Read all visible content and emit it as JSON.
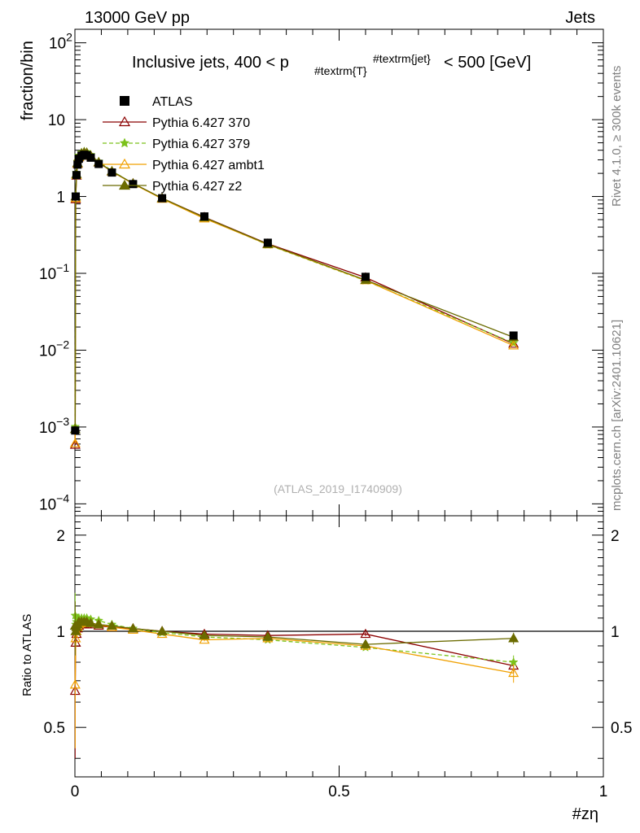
{
  "header": {
    "energy": "13000 GeV pp",
    "process": "Jets",
    "side_info": "Rivet 4.1.0, ≥ 300k events",
    "side_source": "mcplots.cern.ch [arXiv:2401.10621]",
    "analysis_id": "(ATLAS_2019_I1740909)"
  },
  "chart_data": {
    "type": "line",
    "title": "Inclusive jets, 400 < p_{#textrm{T}}^{#textrm{jet}} < 500 [GeV]",
    "title_parts": {
      "prefix": "Inclusive jets, 400 < p",
      "subscript": "#textrm{T}",
      "superscript": "#textrm{jet}",
      "suffix": "< 500 [GeV]"
    },
    "xlabel": "#zη",
    "ylabel": "fraction/bin",
    "ratio_ylabel": "Ratio to ATLAS",
    "xlim": [
      0,
      1
    ],
    "ylim": [
      7e-05,
      150
    ],
    "yscale": "log",
    "ratio_ylim": [
      0.35,
      2.3
    ],
    "x_ticks": [
      0,
      0.5,
      1
    ],
    "x_tick_labels": [
      "0",
      "0.5",
      "1"
    ],
    "y_ticks": [
      {
        "base": "10",
        "exp": "2",
        "value": 100
      },
      {
        "base": "10",
        "exp": "",
        "value": 10
      },
      {
        "base": "1",
        "exp": "",
        "value": 1
      },
      {
        "base": "10",
        "exp": "−1",
        "value": 0.1
      },
      {
        "base": "10",
        "exp": "−2",
        "value": 0.01
      },
      {
        "base": "10",
        "exp": "−3",
        "value": 0.001
      },
      {
        "base": "10",
        "exp": "−4",
        "value": 0.0001
      }
    ],
    "ratio_ticks": [
      {
        "label": "0.5",
        "value": 0.5
      },
      {
        "label": "1",
        "value": 1
      },
      {
        "label": "2",
        "value": 2
      }
    ],
    "legend_position": "top-left",
    "x": [
      0.0005,
      0.0015,
      0.003,
      0.005,
      0.0075,
      0.0125,
      0.0175,
      0.0225,
      0.03,
      0.045,
      0.07,
      0.11,
      0.165,
      0.245,
      0.365,
      0.55,
      0.83
    ],
    "reference": {
      "name": "ATLAS",
      "color": "#000000",
      "values": [
        0.0009,
        1.0,
        1.9,
        2.6,
        3.1,
        3.4,
        3.5,
        3.45,
        3.2,
        2.65,
        2.05,
        1.45,
        0.95,
        0.55,
        0.25,
        0.09,
        0.0155
      ]
    },
    "series": [
      {
        "name": "Pythia 6.427 370",
        "color": "#8b0000",
        "marker": "triangle-open",
        "dashed": false,
        "ratio": [
          0.65,
          0.92,
          0.98,
          1.02,
          1.04,
          1.05,
          1.05,
          1.05,
          1.05,
          1.04,
          1.03,
          1.02,
          1.0,
          0.98,
          0.97,
          0.98,
          0.78
        ],
        "ratio_err": [
          0.25,
          0.04,
          0.02,
          0.015,
          0.01,
          0.01,
          0.01,
          0.01,
          0.01,
          0.01,
          0.01,
          0.01,
          0.01,
          0.01,
          0.01,
          0.015,
          0.04
        ]
      },
      {
        "name": "Pythia 6.427 379",
        "color": "#7cc21c",
        "marker": "star",
        "dashed": true,
        "ratio": [
          1.12,
          1.05,
          1.07,
          1.09,
          1.1,
          1.1,
          1.1,
          1.1,
          1.09,
          1.08,
          1.05,
          1.02,
          0.99,
          0.96,
          0.94,
          0.89,
          0.8
        ],
        "ratio_err": [
          0.2,
          0.03,
          0.02,
          0.015,
          0.01,
          0.01,
          0.01,
          0.01,
          0.01,
          0.01,
          0.01,
          0.01,
          0.01,
          0.01,
          0.01,
          0.015,
          0.04
        ]
      },
      {
        "name": "Pythia 6.427 ambt1",
        "color": "#f0a000",
        "marker": "triangle-open",
        "dashed": false,
        "ratio": [
          0.68,
          0.95,
          1.0,
          1.03,
          1.05,
          1.06,
          1.06,
          1.06,
          1.06,
          1.05,
          1.03,
          1.01,
          0.98,
          0.94,
          0.95,
          0.9,
          0.74
        ],
        "ratio_err": [
          0.25,
          0.04,
          0.02,
          0.015,
          0.01,
          0.01,
          0.01,
          0.01,
          0.01,
          0.01,
          0.01,
          0.01,
          0.01,
          0.01,
          0.01,
          0.015,
          0.05
        ]
      },
      {
        "name": "Pythia 6.427 z2",
        "color": "#6b6b00",
        "marker": "triangle-filled",
        "dashed": false,
        "ratio": [
          1.04,
          1.0,
          1.03,
          1.05,
          1.07,
          1.07,
          1.07,
          1.07,
          1.06,
          1.05,
          1.04,
          1.02,
          1.0,
          0.97,
          0.96,
          0.91,
          0.95
        ],
        "ratio_err": [
          0.2,
          0.03,
          0.02,
          0.015,
          0.01,
          0.01,
          0.01,
          0.01,
          0.01,
          0.01,
          0.01,
          0.01,
          0.01,
          0.01,
          0.01,
          0.015,
          0.04
        ]
      }
    ]
  }
}
